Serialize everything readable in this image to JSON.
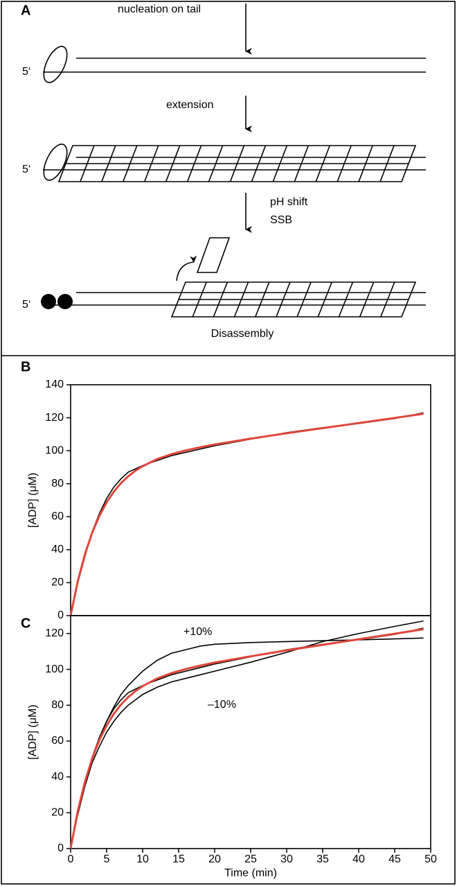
{
  "diagram": {
    "panel_label": "A",
    "step1": "nucleation on tail",
    "step2": "extension",
    "step3": [
      "pH shift",
      "SSB"
    ],
    "five_prime": [
      "5‘",
      "5‘",
      "5‘"
    ],
    "caption": "Disassembly"
  },
  "chart_data": [
    {
      "type": "line",
      "panel_label": "B",
      "y_label": "[ADP] (μM)",
      "x": [
        0,
        1,
        2,
        3,
        4,
        5,
        6,
        7,
        8,
        9,
        10,
        12,
        14,
        16,
        18,
        20,
        25,
        30,
        35,
        40,
        45,
        49
      ],
      "series": [
        {
          "color": "#000000",
          "values": [
            0,
            20,
            36,
            51,
            62,
            71,
            78,
            83,
            87,
            89,
            91,
            94,
            97,
            99,
            101,
            103,
            107,
            111,
            114,
            116.5,
            119.5,
            123
          ]
        },
        {
          "color": "#e0463c",
          "values": [
            0,
            21,
            37.4,
            50.4,
            60.6,
            68.7,
            75.2,
            80.4,
            84.5,
            87.9,
            90.6,
            94.9,
            97.9,
            100.2,
            102.1,
            103.8,
            107.3,
            110.6,
            113.7,
            116.8,
            119.9,
            122.4
          ]
        }
      ],
      "xlim": [
        0,
        50
      ],
      "ylim": [
        0,
        140
      ],
      "yticks": [
        0,
        20,
        40,
        60,
        80,
        100,
        120,
        140
      ]
    },
    {
      "type": "line",
      "panel_label": "C",
      "y_label": "[ADP] (μM)",
      "x_label": "Time (min)",
      "x": [
        0,
        1,
        2,
        3,
        4,
        5,
        6,
        7,
        8,
        9,
        10,
        12,
        14,
        16,
        18,
        20,
        25,
        30,
        35,
        40,
        45,
        49
      ],
      "series": [
        {
          "color": "#000000",
          "values": [
            0,
            20,
            37,
            51,
            62,
            71,
            79,
            86,
            91,
            95,
            99,
            105,
            109,
            111,
            113,
            114,
            115,
            115.5,
            116,
            116.5,
            117,
            117.5
          ]
        },
        {
          "color": "#000000",
          "values": [
            0,
            19,
            35,
            48,
            57,
            65,
            71,
            76,
            80,
            83,
            86,
            90,
            93,
            95,
            97,
            99,
            104,
            109.5,
            115.5,
            120,
            124,
            127
          ]
        },
        {
          "color": "#000000",
          "values": [
            0,
            20,
            36,
            51,
            62,
            71,
            78,
            83,
            87,
            89,
            91,
            94,
            97,
            99,
            101,
            103,
            107,
            111,
            114,
            116.5,
            119.5,
            123
          ]
        },
        {
          "color": "#e0463c",
          "values": [
            0,
            21,
            37.4,
            50.4,
            60.6,
            68.7,
            75.2,
            80.4,
            84.5,
            87.9,
            90.6,
            94.9,
            97.9,
            100.2,
            102.1,
            103.8,
            107.3,
            110.6,
            113.7,
            116.8,
            119.9,
            122.4
          ]
        }
      ],
      "annotations": [
        "+10%",
        "–10%"
      ],
      "xlim": [
        0,
        50
      ],
      "ylim": [
        0,
        130
      ],
      "xticks": [
        0,
        5,
        10,
        15,
        20,
        25,
        30,
        35,
        40,
        45,
        50
      ],
      "yticks": [
        0,
        20,
        40,
        60,
        80,
        100,
        120
      ]
    }
  ]
}
